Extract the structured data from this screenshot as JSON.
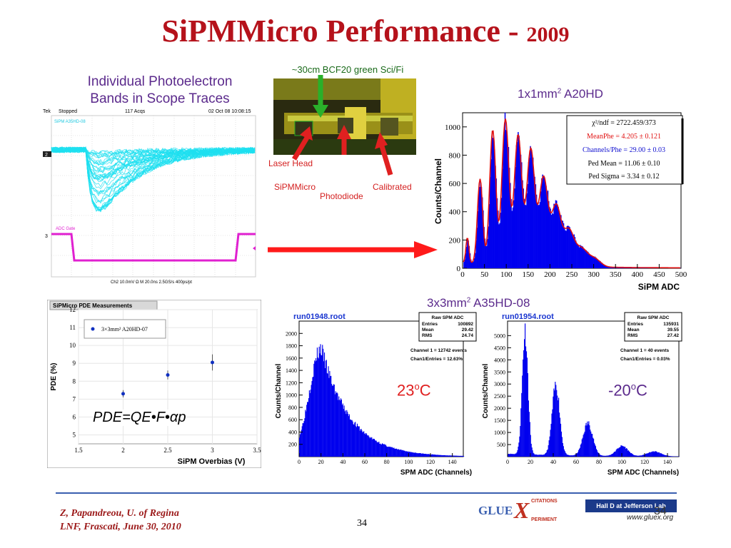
{
  "slide": {
    "title": "SiPMMicro Performance - ",
    "title_year": "2009",
    "page_number": "34",
    "footer_line1": "Z, Papandreou, U. of Regina",
    "footer_line2": "LNF, Frascati, June 30, 2010"
  },
  "scope": {
    "caption_line1": "Individual Photoelectron",
    "caption_line2": "Bands in Scope Traces",
    "header_tek": "Tek",
    "header_stopped": "Stopped",
    "header_acqs": "117 Acqs",
    "header_date": "02 Oct 08 10:08:15",
    "ch_label": "SiPM A35HD-08",
    "gate_label": "ADC Gate",
    "bottom_text": "Ch2    10.0mV  Ω      M 20.0ns 2.5GS/s      400ps/pt",
    "marker_2": "2",
    "marker_3": "3"
  },
  "photo": {
    "fiber_label": "~30cm BCF20 green Sci/Fi",
    "laser_label": "Laser Head",
    "sipm_label": "SiPMMicro",
    "photodiode_label": "Photodiode",
    "calibrated_label": "Calibrated"
  },
  "hist1": {
    "label_main": "1x1mm",
    "label_sup": "2",
    "label_rest": " A20HD",
    "ylabel": "Counts/Channel",
    "xlabel": "SiPM ADC",
    "yticks": [
      "0",
      "200",
      "400",
      "600",
      "800",
      "1000"
    ],
    "xticks": [
      "0",
      "50",
      "100",
      "150",
      "200",
      "250",
      "300",
      "350",
      "400",
      "450",
      "500"
    ],
    "stats": {
      "chi": "χ²/ndf = 2722.459/373",
      "meanphe": "MeanPhe = 4.205 ± 0.121",
      "channels": "Channels/Phe = 29.00 ± 0.03",
      "pedmean": "Ped Mean = 11.06 ± 0.10",
      "pedsigma": "Ped Sigma = 3.34 ± 0.12"
    },
    "colors": {
      "fill": "#0000ee",
      "fit": "#e01010"
    }
  },
  "pde": {
    "panel_title": "SiPMicro PDE Measurements",
    "legend": "3×3mm² A20HD-07",
    "ylabel": "PDE (%)",
    "xlabel": "SiPM Overbias (V)",
    "formula": "PDE=QE•F•αp",
    "yticks": [
      "5",
      "6",
      "7",
      "8",
      "9",
      "10",
      "11",
      "12"
    ],
    "xticks": [
      "1.5",
      "2",
      "2.5",
      "3",
      "3.5"
    ]
  },
  "hist_pair_label": {
    "main": "3x3mm",
    "sup": "2",
    "rest": " A35HD-08"
  },
  "hist2": {
    "title": "run01948.root",
    "temp": "23",
    "temp_unit": "oC",
    "ylabel": "Counts/Channel",
    "xlabel": "SPM ADC (Channels)",
    "stats_title": "Raw SPM ADC",
    "stats": [
      [
        "Entries",
        "100892"
      ],
      [
        "Mean",
        "29.42"
      ],
      [
        "RMS",
        "24.74"
      ]
    ],
    "note1": "Channel 1 = 12742 events",
    "note2": "Chan1/Entries = 12.63%",
    "yticks": [
      "200",
      "400",
      "600",
      "800",
      "1000",
      "1200",
      "1400",
      "1600",
      "1800",
      "2000"
    ],
    "xticks": [
      "0",
      "20",
      "40",
      "60",
      "80",
      "100",
      "120",
      "140"
    ]
  },
  "hist3": {
    "title": "run01954.root",
    "temp": "-20",
    "temp_unit": "oC",
    "ylabel": "Counts/Channel",
    "xlabel": "SPM ADC (Channels)",
    "stats_title": "Raw SPM ADC",
    "stats": [
      [
        "Entries",
        "135931"
      ],
      [
        "Mean",
        "39.55"
      ],
      [
        "RMS",
        "27.42"
      ]
    ],
    "note1": "Channel 1 = 40 events",
    "note2": "Chan1/Entries = 0.03%",
    "yticks": [
      "500",
      "1000",
      "1500",
      "2000",
      "2500",
      "3000",
      "3500",
      "4000",
      "4500",
      "5000"
    ],
    "xticks": [
      "0",
      "20",
      "40",
      "60",
      "80",
      "100",
      "120",
      "140"
    ]
  },
  "logos": {
    "gluex_a": "GLUE",
    "gluex_b": "X",
    "citations": "CITATIONS",
    "periment": "PERIMENT",
    "halld": "Hall D at Jefferson Lab",
    "url": "www.gluex.org"
  }
}
